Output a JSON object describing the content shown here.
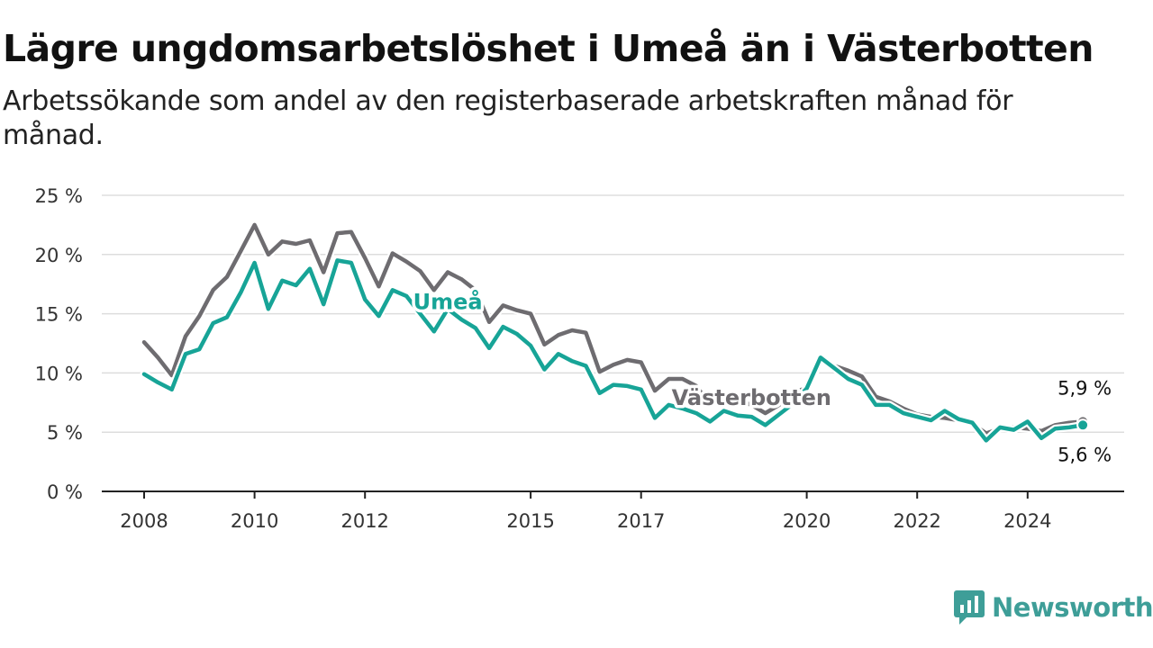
{
  "header": {
    "title": "Lägre ungdomsarbetslöshet i Umeå än i Västerbotten",
    "subtitle": "Arbetssökande som andel av den registerbaserade arbetskraften månad för månad."
  },
  "brand": {
    "name": "Newsworthy",
    "icon": "newsworthy-logo-icon",
    "color": "#3e9e98"
  },
  "colors": {
    "umea": "#17a497",
    "vasterbotten": "#6e6c70",
    "grid": "#dddddd",
    "axis": "#222222"
  },
  "chart_data": {
    "type": "line",
    "title": "Lägre ungdomsarbetslöshet i Umeå än i Västerbotten",
    "subtitle": "Arbetssökande som andel av den registerbaserade arbetskraften månad för månad.",
    "xlabel": "",
    "ylabel": "",
    "ylim": [
      0,
      25
    ],
    "xlim": [
      "2007-01",
      "2025-06"
    ],
    "yticks": [
      0,
      5,
      10,
      15,
      20,
      25
    ],
    "ytick_labels": [
      "0 %",
      "5 %",
      "10 %",
      "15 %",
      "20 %",
      "25 %"
    ],
    "xticks": [
      "2008-01",
      "2010-01",
      "2012-01",
      "2015-01",
      "2017-01",
      "2020-01",
      "2022-01",
      "2024-01"
    ],
    "xtick_labels": [
      "2008",
      "2010",
      "2012",
      "2015",
      "2017",
      "2020",
      "2022",
      "2024"
    ],
    "grid": true,
    "legend": "none (direct labels)",
    "series": [
      {
        "name": "Västerbotten",
        "color": "#6e6c70",
        "label_pos": "2019-01",
        "end_label": "5,9 %",
        "points": [
          [
            "2008-01",
            12.6
          ],
          [
            "2008-04",
            11.3
          ],
          [
            "2008-07",
            9.8
          ],
          [
            "2008-10",
            13.1
          ],
          [
            "2009-01",
            14.8
          ],
          [
            "2009-04",
            17.0
          ],
          [
            "2009-07",
            18.1
          ],
          [
            "2009-10",
            20.3
          ],
          [
            "2010-01",
            22.5
          ],
          [
            "2010-04",
            20.0
          ],
          [
            "2010-07",
            21.1
          ],
          [
            "2010-10",
            20.9
          ],
          [
            "2011-01",
            21.2
          ],
          [
            "2011-04",
            18.5
          ],
          [
            "2011-07",
            21.8
          ],
          [
            "2011-10",
            21.9
          ],
          [
            "2012-01",
            19.7
          ],
          [
            "2012-04",
            17.3
          ],
          [
            "2012-07",
            20.1
          ],
          [
            "2012-10",
            19.4
          ],
          [
            "2013-01",
            18.6
          ],
          [
            "2013-04",
            17.0
          ],
          [
            "2013-07",
            18.5
          ],
          [
            "2013-10",
            17.9
          ],
          [
            "2014-01",
            17.0
          ],
          [
            "2014-04",
            14.3
          ],
          [
            "2014-07",
            15.7
          ],
          [
            "2014-10",
            15.3
          ],
          [
            "2015-01",
            15.0
          ],
          [
            "2015-04",
            12.4
          ],
          [
            "2015-07",
            13.2
          ],
          [
            "2015-10",
            13.6
          ],
          [
            "2016-01",
            13.4
          ],
          [
            "2016-04",
            10.1
          ],
          [
            "2016-07",
            10.7
          ],
          [
            "2016-10",
            11.1
          ],
          [
            "2017-01",
            10.9
          ],
          [
            "2017-04",
            8.5
          ],
          [
            "2017-07",
            9.5
          ],
          [
            "2017-10",
            9.5
          ],
          [
            "2018-01",
            8.9
          ],
          [
            "2018-04",
            7.3
          ],
          [
            "2018-07",
            7.9
          ],
          [
            "2018-10",
            7.7
          ],
          [
            "2019-01",
            7.3
          ],
          [
            "2019-04",
            6.6
          ],
          [
            "2019-07",
            7.3
          ],
          [
            "2019-10",
            8.4
          ],
          [
            "2020-01",
            8.7
          ],
          [
            "2020-04",
            11.0
          ],
          [
            "2020-07",
            10.6
          ],
          [
            "2020-10",
            10.2
          ],
          [
            "2021-01",
            9.7
          ],
          [
            "2021-04",
            8.0
          ],
          [
            "2021-07",
            7.6
          ],
          [
            "2021-10",
            7.0
          ],
          [
            "2022-01",
            6.5
          ],
          [
            "2022-04",
            6.3
          ],
          [
            "2022-07",
            6.2
          ],
          [
            "2022-10",
            6.0
          ],
          [
            "2023-01",
            5.7
          ],
          [
            "2023-04",
            4.9
          ],
          [
            "2023-07",
            5.3
          ],
          [
            "2023-10",
            5.4
          ],
          [
            "2024-01",
            5.3
          ],
          [
            "2024-04",
            5.1
          ],
          [
            "2024-07",
            5.6
          ],
          [
            "2024-10",
            5.8
          ],
          [
            "2025-01",
            5.9
          ]
        ]
      },
      {
        "name": "Umeå",
        "color": "#17a497",
        "label_pos": "2013-07",
        "end_label": "5,6 %",
        "points": [
          [
            "2008-01",
            9.9
          ],
          [
            "2008-04",
            9.2
          ],
          [
            "2008-07",
            8.6
          ],
          [
            "2008-10",
            11.6
          ],
          [
            "2009-01",
            12.0
          ],
          [
            "2009-04",
            14.2
          ],
          [
            "2009-07",
            14.7
          ],
          [
            "2009-10",
            16.8
          ],
          [
            "2010-01",
            19.3
          ],
          [
            "2010-04",
            15.4
          ],
          [
            "2010-07",
            17.8
          ],
          [
            "2010-10",
            17.4
          ],
          [
            "2011-01",
            18.8
          ],
          [
            "2011-04",
            15.8
          ],
          [
            "2011-07",
            19.5
          ],
          [
            "2011-10",
            19.3
          ],
          [
            "2012-01",
            16.2
          ],
          [
            "2012-04",
            14.8
          ],
          [
            "2012-07",
            17.0
          ],
          [
            "2012-10",
            16.5
          ],
          [
            "2013-01",
            15.0
          ],
          [
            "2013-04",
            13.5
          ],
          [
            "2013-07",
            15.4
          ],
          [
            "2013-10",
            14.5
          ],
          [
            "2014-01",
            13.8
          ],
          [
            "2014-04",
            12.1
          ],
          [
            "2014-07",
            13.9
          ],
          [
            "2014-10",
            13.3
          ],
          [
            "2015-01",
            12.3
          ],
          [
            "2015-04",
            10.3
          ],
          [
            "2015-07",
            11.6
          ],
          [
            "2015-10",
            11.0
          ],
          [
            "2016-01",
            10.6
          ],
          [
            "2016-04",
            8.3
          ],
          [
            "2016-07",
            9.0
          ],
          [
            "2016-10",
            8.9
          ],
          [
            "2017-01",
            8.6
          ],
          [
            "2017-04",
            6.2
          ],
          [
            "2017-07",
            7.3
          ],
          [
            "2017-10",
            7.0
          ],
          [
            "2018-01",
            6.6
          ],
          [
            "2018-04",
            5.9
          ],
          [
            "2018-07",
            6.8
          ],
          [
            "2018-10",
            6.4
          ],
          [
            "2019-01",
            6.3
          ],
          [
            "2019-04",
            5.6
          ],
          [
            "2019-07",
            6.5
          ],
          [
            "2019-10",
            7.4
          ],
          [
            "2020-01",
            8.7
          ],
          [
            "2020-04",
            11.3
          ],
          [
            "2020-07",
            10.4
          ],
          [
            "2020-10",
            9.5
          ],
          [
            "2021-01",
            9.0
          ],
          [
            "2021-04",
            7.3
          ],
          [
            "2021-07",
            7.3
          ],
          [
            "2021-10",
            6.6
          ],
          [
            "2022-01",
            6.3
          ],
          [
            "2022-04",
            6.0
          ],
          [
            "2022-07",
            6.8
          ],
          [
            "2022-10",
            6.1
          ],
          [
            "2023-01",
            5.8
          ],
          [
            "2023-04",
            4.3
          ],
          [
            "2023-07",
            5.4
          ],
          [
            "2023-10",
            5.2
          ],
          [
            "2024-01",
            5.9
          ],
          [
            "2024-04",
            4.5
          ],
          [
            "2024-07",
            5.3
          ],
          [
            "2024-10",
            5.4
          ],
          [
            "2025-01",
            5.6
          ]
        ]
      }
    ]
  }
}
